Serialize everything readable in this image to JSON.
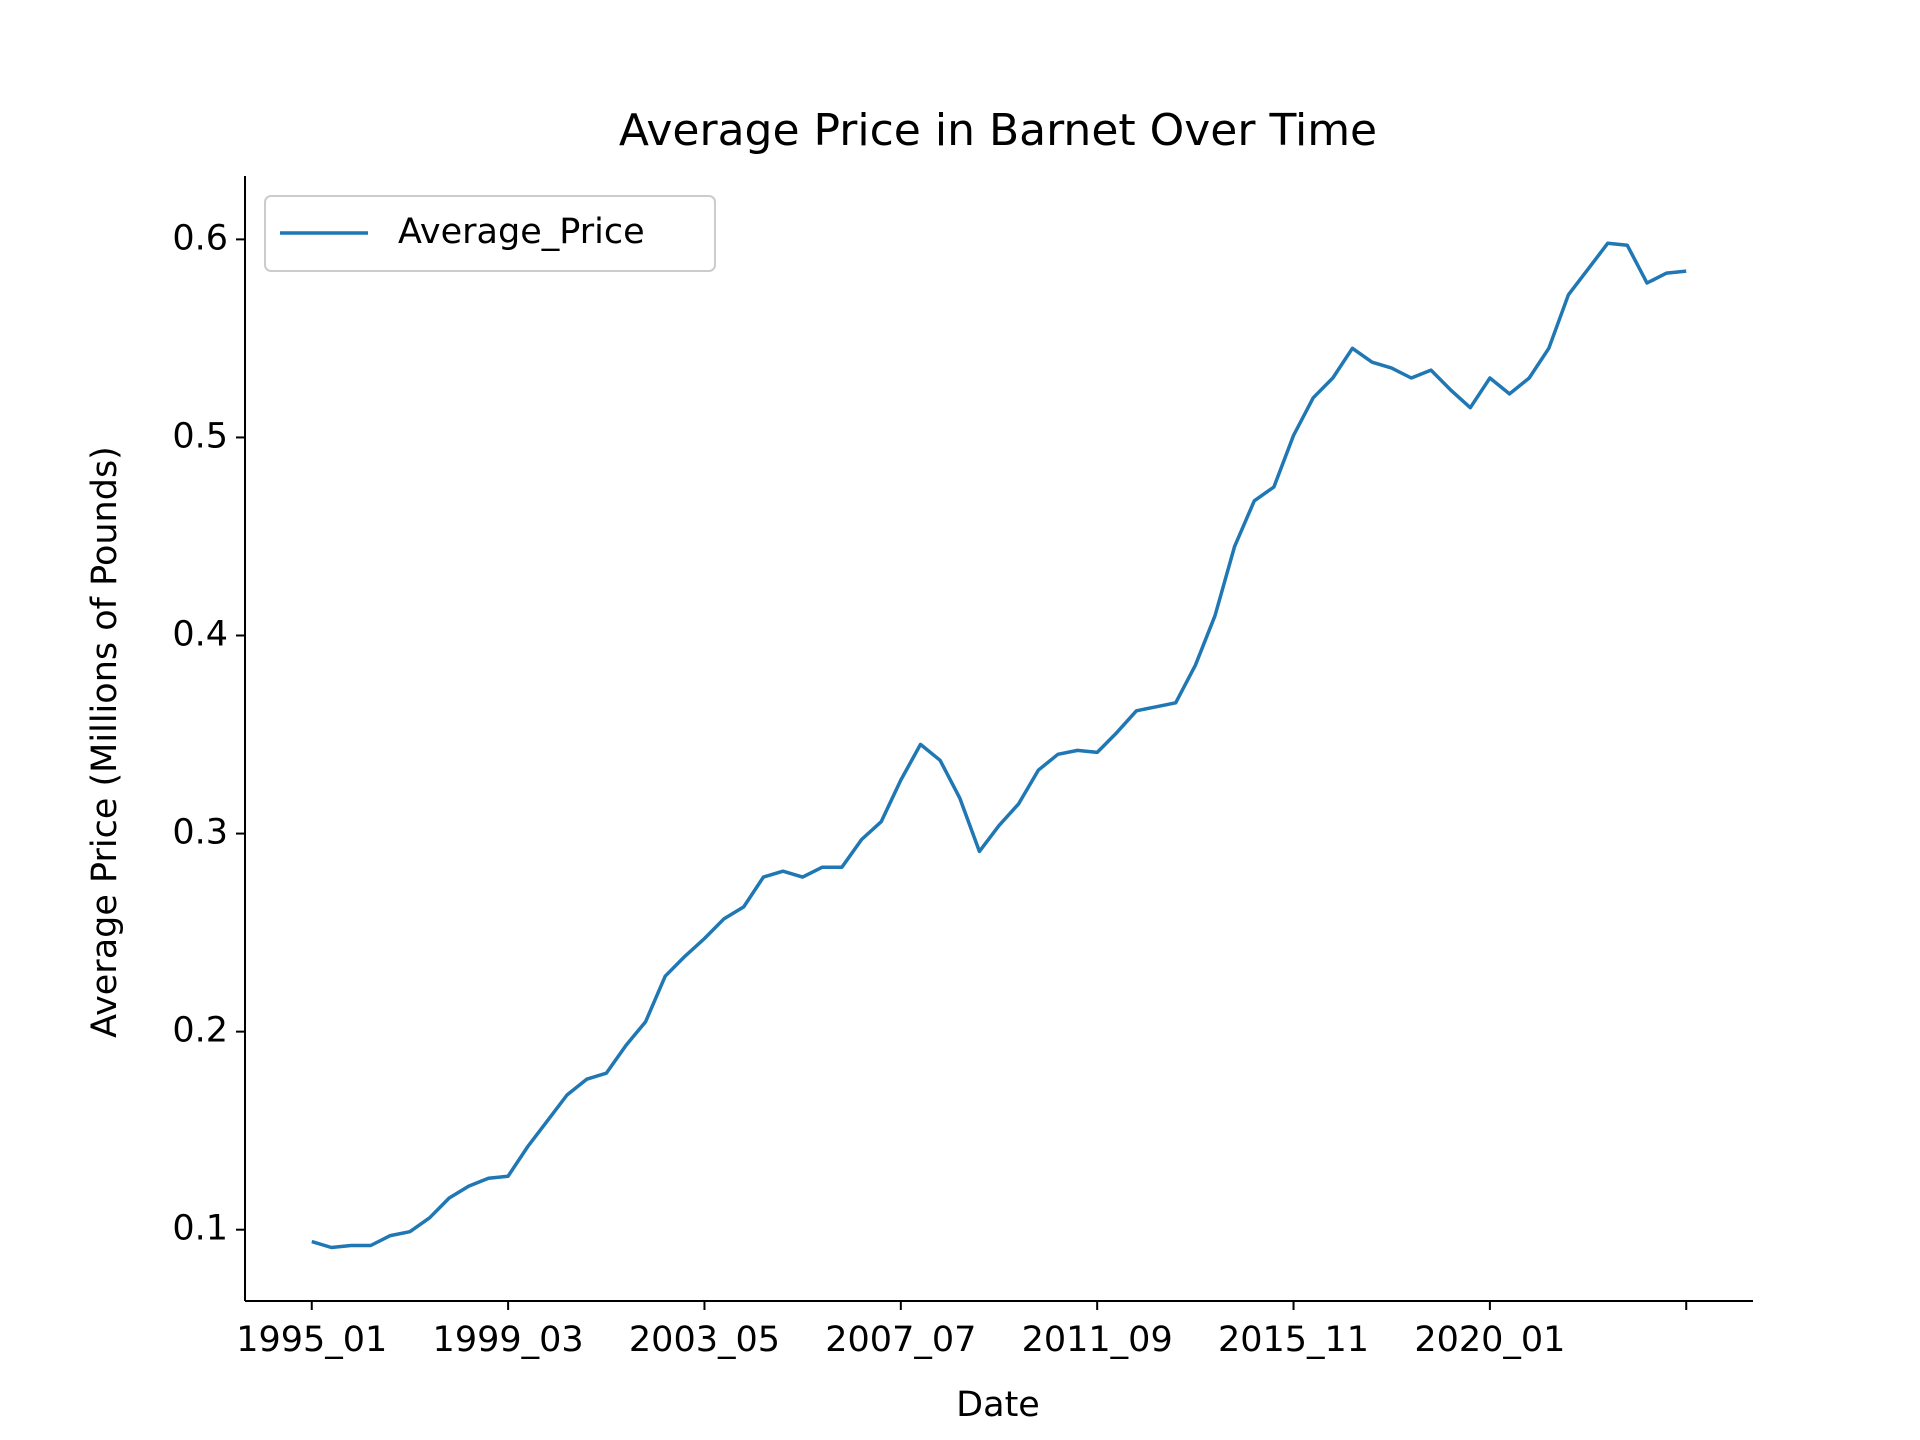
{
  "chart_data": {
    "type": "line",
    "title": "Average Price in Barnet Over Time",
    "xlabel": "Date",
    "ylabel": "Average Price (Millions of Pounds)",
    "categories": [
      "1995_01",
      null,
      null,
      null,
      null,
      null,
      null,
      null,
      null,
      null,
      "1999_03",
      null,
      null,
      null,
      null,
      null,
      null,
      null,
      null,
      null,
      "2003_05",
      null,
      null,
      null,
      null,
      null,
      null,
      null,
      null,
      null,
      "2007_07",
      null,
      null,
      null,
      null,
      null,
      null,
      null,
      null,
      null,
      "2011_09",
      null,
      null,
      null,
      null,
      null,
      null,
      null,
      null,
      null,
      "2015_11",
      null,
      null,
      null,
      null,
      null,
      null,
      null,
      null,
      null,
      "2020_01",
      null,
      null,
      null,
      null,
      null,
      null,
      null,
      null,
      null,
      null
    ],
    "series": [
      {
        "name": "Average_Price",
        "color": "#1f77b4",
        "values": [
          0.094,
          0.091,
          0.092,
          0.092,
          0.097,
          0.099,
          0.106,
          0.116,
          0.122,
          0.126,
          0.127,
          0.142,
          0.155,
          0.168,
          0.176,
          0.179,
          0.193,
          0.205,
          0.228,
          0.238,
          0.247,
          0.257,
          0.263,
          0.278,
          0.281,
          0.278,
          0.283,
          0.283,
          0.297,
          0.306,
          0.327,
          0.345,
          0.337,
          0.318,
          0.291,
          0.304,
          0.315,
          0.332,
          0.34,
          0.342,
          0.341,
          0.351,
          0.362,
          0.364,
          0.366,
          0.385,
          0.41,
          0.445,
          0.468,
          0.475,
          0.501,
          0.52,
          0.53,
          0.545,
          0.538,
          0.535,
          0.53,
          0.534,
          0.524,
          0.515,
          0.53,
          0.522,
          0.53,
          0.545,
          0.572,
          0.585,
          0.598,
          0.597,
          0.578,
          0.583,
          0.584
        ]
      }
    ],
    "ylim": [
      0.064,
      0.632
    ],
    "yticks": [
      0.1,
      0.2,
      0.3,
      0.4,
      0.5,
      0.6
    ],
    "legend": "upper left"
  }
}
